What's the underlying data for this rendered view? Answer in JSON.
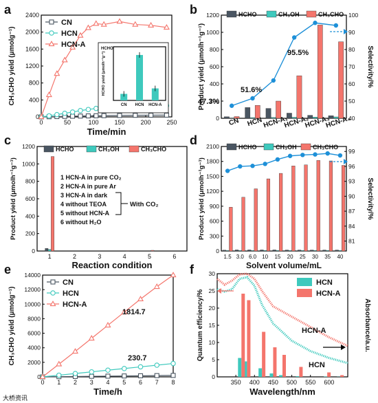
{
  "figure": {
    "watermark": "大桥资讯"
  },
  "chart_data": [
    {
      "panel": "a",
      "type": "line",
      "xlabel": "Time/min",
      "ylabel": "CH₃CHO yield (μmolg⁻¹)",
      "xlim": [
        0,
        250
      ],
      "ylim": [
        0,
        2400
      ],
      "xticks": [
        0,
        50,
        100,
        150,
        200,
        250
      ],
      "yticks": [
        0,
        400,
        800,
        1200,
        1600,
        2000,
        2400
      ],
      "series": [
        {
          "name": "CN",
          "color": "#4a5662",
          "marker": "square",
          "x": [
            0,
            15,
            30,
            45,
            60,
            75,
            90,
            105,
            120,
            150,
            180,
            210,
            240
          ],
          "y": [
            0,
            4,
            8,
            12,
            16,
            20,
            24,
            27,
            30,
            34,
            38,
            40,
            42
          ]
        },
        {
          "name": "HCN",
          "color": "#3ec9bd",
          "marker": "circle",
          "x": [
            0,
            15,
            30,
            45,
            60,
            75,
            90,
            105,
            120,
            150,
            180,
            210,
            240
          ],
          "y": [
            0,
            25,
            55,
            85,
            115,
            150,
            175,
            200,
            225,
            250,
            255,
            260,
            265
          ]
        },
        {
          "name": "HCN-A",
          "color": "#f4756c",
          "marker": "triangle",
          "x": [
            0,
            15,
            30,
            45,
            60,
            75,
            90,
            105,
            120,
            150,
            180,
            210,
            240
          ],
          "y": [
            0,
            520,
            1020,
            1340,
            1640,
            1920,
            2100,
            2200,
            2180,
            2250,
            2180,
            2160,
            2110
          ]
        }
      ],
      "legend": [
        "CN",
        "HCN",
        "HCN-A"
      ],
      "inset": {
        "title": "HCHO",
        "ylabel": "HCHO yield (μmolh⁻¹g⁻¹)",
        "categories": [
          "CN",
          "HCN",
          "HCN-A"
        ],
        "values": [
          18,
          125,
          33
        ],
        "ylim": [
          0,
          140
        ],
        "color": "#3ec9bd"
      }
    },
    {
      "panel": "b",
      "type": "bar",
      "ylabel": "Product yield (μmolh⁻¹g⁻¹)",
      "y2label": "Selectivity/%",
      "categories": [
        "CN",
        "HCN",
        "HCN-A₁",
        "HCN-A₂",
        "HCN-A₃",
        "HCN-A₄"
      ],
      "ylim": [
        0,
        1200
      ],
      "yticks": [
        0,
        200,
        400,
        600,
        800,
        1000,
        1200
      ],
      "y2lim": [
        40,
        100
      ],
      "y2ticks": [
        40,
        50,
        60,
        70,
        80,
        90,
        100
      ],
      "series": [
        {
          "name": "HCHO",
          "color": "#4a5662",
          "values": [
            18,
            125,
            115,
            60,
            35,
            30
          ]
        },
        {
          "name": "CH₃OH",
          "color": "#3ec9bd",
          "values": [
            4,
            8,
            10,
            12,
            14,
            16
          ]
        },
        {
          "name": "CH₃CHO",
          "color": "#f4756c",
          "values": [
            20,
            150,
            200,
            495,
            1085,
            890
          ]
        }
      ],
      "selectivity": {
        "color": "#1e90d8",
        "values": [
          47.3,
          51.6,
          62,
          87,
          95.5,
          94
        ]
      },
      "annotations": [
        "47.3%",
        "51.6%",
        "95.5%"
      ]
    },
    {
      "panel": "c",
      "type": "bar",
      "xlabel": "Reaction condition",
      "ylabel": "Product yield (μmolh⁻¹g⁻¹)",
      "categories": [
        "1",
        "2",
        "3",
        "4",
        "5",
        "6"
      ],
      "ylim": [
        0,
        1200
      ],
      "yticks": [
        0,
        200,
        400,
        600,
        800,
        1000,
        1200
      ],
      "series": [
        {
          "name": "HCHO",
          "color": "#4a5662",
          "values": [
            30,
            0,
            0,
            0,
            0,
            0
          ]
        },
        {
          "name": "CH₃OH",
          "color": "#3ec9bd",
          "values": [
            18,
            0,
            0,
            0,
            0,
            0
          ]
        },
        {
          "name": "CH₃CHO",
          "color": "#f4756c",
          "values": [
            1085,
            0,
            0,
            4,
            8,
            0
          ]
        }
      ],
      "conditions": [
        "1 HCN-A in pure CO₂",
        "2 HCN-A in pure Ar",
        "3 HCN-A in dark",
        "4 without TEOA",
        "5 without HCN-A",
        "6 without H₂O"
      ],
      "bracket_label": "With CO₂"
    },
    {
      "panel": "d",
      "type": "bar",
      "xlabel": "Solvent volume/mL",
      "ylabel": "Product yield (μmolh⁻¹g⁻¹)",
      "y2label": "Selectivity/%",
      "categories": [
        "1.5",
        "3.0",
        "6.0",
        "10",
        "15",
        "20",
        "25",
        "30",
        "35",
        "40"
      ],
      "ylim": [
        0,
        2100
      ],
      "yticks": [
        0,
        300,
        600,
        900,
        1200,
        1500,
        1800,
        2100
      ],
      "y2lim": [
        79,
        100
      ],
      "y2ticks": [
        81,
        84,
        87,
        90,
        93,
        96,
        99
      ],
      "series": [
        {
          "name": "HCHO",
          "color": "#4a5662",
          "values": [
            18,
            22,
            22,
            22,
            22,
            20,
            20,
            20,
            20,
            20
          ]
        },
        {
          "name": "CH₃OH",
          "color": "#3ec9bd",
          "values": [
            10,
            10,
            10,
            12,
            12,
            12,
            12,
            12,
            12,
            12
          ]
        },
        {
          "name": "CH₃CHO",
          "color": "#f4756c",
          "values": [
            880,
            1080,
            1250,
            1450,
            1560,
            1710,
            1730,
            1820,
            1810,
            1720
          ]
        }
      ],
      "selectivity": {
        "color": "#1e90d8",
        "values": [
          95.1,
          96.0,
          96.1,
          96.5,
          97.4,
          98.1,
          98.3,
          98.4,
          98.6,
          98.2
        ]
      }
    },
    {
      "panel": "e",
      "type": "line",
      "xlabel": "Time/h",
      "ylabel": "CH₃CHO yield (μmolg⁻¹)",
      "xlim": [
        0,
        8
      ],
      "ylim": [
        0,
        14000
      ],
      "xticks": [
        0,
        1,
        2,
        3,
        4,
        5,
        6,
        7,
        8
      ],
      "yticks": [
        0,
        2000,
        4000,
        6000,
        8000,
        10000,
        12000,
        14000
      ],
      "series": [
        {
          "name": "CN",
          "color": "#4a5662",
          "marker": "square",
          "x": [
            0,
            1,
            2,
            3,
            4,
            5,
            6,
            7,
            8
          ],
          "y": [
            0,
            25,
            50,
            75,
            100,
            125,
            150,
            175,
            200
          ]
        },
        {
          "name": "HCN",
          "color": "#3ec9bd",
          "marker": "circle",
          "x": [
            0,
            1,
            2,
            3,
            4,
            5,
            6,
            7,
            8
          ],
          "y": [
            0,
            230,
            460,
            690,
            920,
            1150,
            1380,
            1610,
            1840
          ]
        },
        {
          "name": "HCN-A",
          "color": "#f4756c",
          "marker": "triangle",
          "x": [
            0,
            1,
            2,
            3,
            4,
            5,
            6,
            7,
            8
          ],
          "y": [
            0,
            1750,
            3500,
            5300,
            7100,
            8900,
            10700,
            12400,
            14000
          ]
        }
      ],
      "legend": [
        "CN",
        "HCN",
        "HCN-A"
      ],
      "annotations": [
        "1814.7",
        "230.7"
      ]
    },
    {
      "panel": "f",
      "type": "bar+line",
      "xlabel": "Wavelength/nm",
      "ylabel": "Quantum efficiency/%",
      "y2label": "Absorbance/a.u.",
      "xlim": [
        300,
        650
      ],
      "xticks": [
        350,
        400,
        450,
        500,
        550,
        600
      ],
      "ylim": [
        0,
        30
      ],
      "yticks": [
        0,
        5,
        10,
        15,
        20,
        25,
        30
      ],
      "bars": [
        {
          "name": "HCN",
          "color": "#3ec9bd",
          "x": [
            365,
            380,
            420,
            450,
            475,
            520,
            595,
            630
          ],
          "y": [
            5.5,
            4.5,
            2.5,
            1.0,
            0.5,
            0.2,
            0.1,
            0.05
          ]
        },
        {
          "name": "HCN-A",
          "color": "#f4756c",
          "x": [
            365,
            380,
            420,
            450,
            475,
            520,
            595,
            630
          ],
          "y": [
            24.2,
            22.3,
            13.1,
            8.6,
            6.4,
            2.9,
            1.3,
            0.5
          ]
        }
      ],
      "absorbance": [
        {
          "name": "HCN-A",
          "color": "#f4756c",
          "x": [
            300,
            320,
            340,
            360,
            380,
            400,
            420,
            450,
            500,
            550,
            600,
            650
          ],
          "y": [
            28.5,
            26.8,
            28.0,
            29.8,
            30.0,
            28.5,
            25.0,
            20.5,
            17.5,
            14.5,
            11.5,
            9.0
          ]
        },
        {
          "name": "HCN",
          "color": "#3ec9bd",
          "x": [
            300,
            320,
            340,
            360,
            380,
            400,
            420,
            450,
            500,
            550,
            600,
            650
          ],
          "y": [
            25.5,
            24.8,
            25.5,
            28.5,
            29.0,
            26.5,
            21.0,
            15.5,
            10.5,
            7.5,
            5.5,
            4.0
          ]
        }
      ],
      "legend": [
        "HCN",
        "HCN-A"
      ],
      "curve_labels": [
        "HCN-A",
        "HCN"
      ]
    }
  ]
}
